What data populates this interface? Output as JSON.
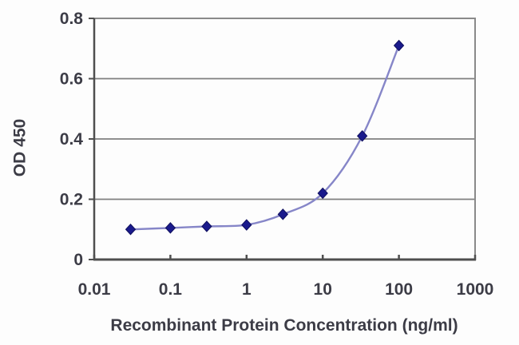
{
  "chart": {
    "xlabel": "Recombinant Protein Concentration (ng/ml)",
    "ylabel": "OD 450"
  },
  "chart_data": {
    "type": "line",
    "title": "",
    "xlabel": "Recombinant Protein Concentration (ng/ml)",
    "ylabel": "OD 450",
    "x_scale": "log",
    "xlim": [
      0.01,
      1000
    ],
    "ylim": [
      0,
      0.8
    ],
    "x_ticks": [
      0.01,
      0.1,
      1,
      10,
      100,
      1000
    ],
    "x_tick_labels": [
      "0.01",
      "0.1",
      "1",
      "10",
      "100",
      "1000"
    ],
    "y_ticks": [
      0,
      0.2,
      0.4,
      0.6,
      0.8
    ],
    "y_tick_labels": [
      "0",
      "0.2",
      "0.4",
      "0.6",
      "0.8"
    ],
    "grid": "horizontal",
    "legend": "none",
    "marker": "diamond",
    "line_style": "smooth",
    "x": [
      0.03,
      0.1,
      0.3,
      1,
      3,
      10,
      33,
      100
    ],
    "y": [
      0.1,
      0.105,
      0.11,
      0.115,
      0.15,
      0.22,
      0.41,
      0.71
    ],
    "colors": {
      "line": "#8686c8",
      "marker_fill": "#1a1a8c",
      "marker_edge": "#10105e",
      "grid": "#7f7f7f",
      "axis_box": "#8a8a8a",
      "axis_main": "#4f4f4f",
      "text": "#3c3c46",
      "background": "#fdfdfd"
    }
  }
}
